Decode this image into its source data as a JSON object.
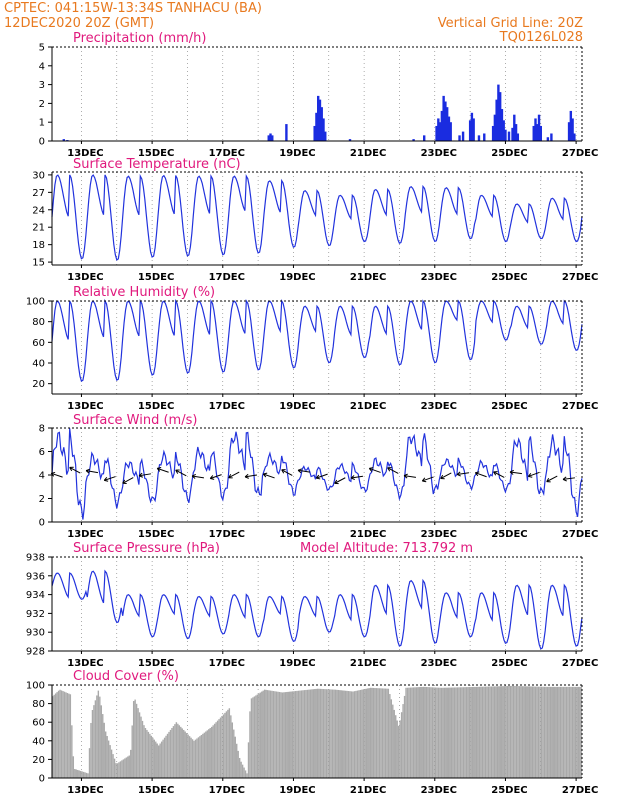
{
  "header": {
    "line1": "CPTEC:   041:15W-13:34S   TANHACU (BA)",
    "line2": "12DEC2020 20Z (GMT)",
    "grid_note": "Vertical Grid Line: 20Z",
    "run_code": "TQ0126L028"
  },
  "colors": {
    "line": "#2233dd",
    "bar": "#1a2ce0",
    "cloud": "#a9a9a9",
    "header": "#e8791f",
    "title": "#e0197d"
  },
  "x_ticks": [
    "13DEC",
    "15DEC",
    "17DEC",
    "19DEC",
    "21DEC",
    "23DEC",
    "25DEC",
    "27DEC"
  ],
  "chart_data": [
    {
      "type": "bar",
      "title": "Precipitation (mm/h)",
      "ylim": [
        0,
        5
      ],
      "yticks": [
        0,
        1,
        2,
        3,
        4,
        5
      ],
      "x_range_days": [
        12.0,
        27.0
      ],
      "bars": [
        [
          12.3,
          0.1
        ],
        [
          12.4,
          0.05
        ],
        [
          18.1,
          0.3
        ],
        [
          18.15,
          0.4
        ],
        [
          18.2,
          0.3
        ],
        [
          18.6,
          0.9
        ],
        [
          19.4,
          0.8
        ],
        [
          19.45,
          1.5
        ],
        [
          19.5,
          2.4
        ],
        [
          19.55,
          2.2
        ],
        [
          19.6,
          1.8
        ],
        [
          19.65,
          1.2
        ],
        [
          19.7,
          0.5
        ],
        [
          20.4,
          0.1
        ],
        [
          22.2,
          0.1
        ],
        [
          22.5,
          0.3
        ],
        [
          22.85,
          0.8
        ],
        [
          22.9,
          1.2
        ],
        [
          22.95,
          1.0
        ],
        [
          23.0,
          1.6
        ],
        [
          23.05,
          2.4
        ],
        [
          23.1,
          2.1
        ],
        [
          23.15,
          1.8
        ],
        [
          23.2,
          1.3
        ],
        [
          23.25,
          1.0
        ],
        [
          23.5,
          0.3
        ],
        [
          23.6,
          0.5
        ],
        [
          23.8,
          1.1
        ],
        [
          23.85,
          1.5
        ],
        [
          23.9,
          1.2
        ],
        [
          24.05,
          0.3
        ],
        [
          24.2,
          0.4
        ],
        [
          24.45,
          0.8
        ],
        [
          24.5,
          1.4
        ],
        [
          24.55,
          2.2
        ],
        [
          24.6,
          3.0
        ],
        [
          24.65,
          2.6
        ],
        [
          24.7,
          1.7
        ],
        [
          24.75,
          1.1
        ],
        [
          24.8,
          0.6
        ],
        [
          24.9,
          0.5
        ],
        [
          25.0,
          0.7
        ],
        [
          25.05,
          1.4
        ],
        [
          25.1,
          0.9
        ],
        [
          25.15,
          0.4
        ],
        [
          25.6,
          0.8
        ],
        [
          25.65,
          1.2
        ],
        [
          25.7,
          0.9
        ],
        [
          25.75,
          1.4
        ],
        [
          25.8,
          0.8
        ],
        [
          26.0,
          0.2
        ],
        [
          26.1,
          0.4
        ],
        [
          26.6,
          1.0
        ],
        [
          26.65,
          1.6
        ],
        [
          26.7,
          1.2
        ],
        [
          26.75,
          0.4
        ]
      ]
    },
    {
      "type": "line",
      "title": "Surface Temperature (nC)",
      "ylim": [
        14.5,
        30.5
      ],
      "yticks": [
        15,
        18,
        21,
        24,
        27,
        30
      ],
      "x_range_days": [
        12.0,
        27.0
      ],
      "daily_min": [
        15.5,
        15.3,
        15.8,
        16.0,
        16.2,
        16.5,
        17.5,
        17.8,
        18.5,
        18.2,
        18.5,
        19.0,
        18.5,
        19.0,
        18.5,
        18.5
      ],
      "daily_max": [
        30.0,
        30.0,
        29.8,
        29.9,
        29.8,
        29.8,
        29.0,
        27.3,
        26.5,
        27.5,
        28.0,
        27.8,
        26.5,
        25.0,
        26.0,
        27.3
      ]
    },
    {
      "type": "line",
      "title": "Relative Humidity (%)",
      "ylim": [
        10,
        100
      ],
      "yticks": [
        20,
        40,
        60,
        80,
        100
      ],
      "x_range_days": [
        12.0,
        27.0
      ],
      "daily_min": [
        22,
        23,
        28,
        30,
        31,
        33,
        35,
        40,
        45,
        38,
        40,
        43,
        62,
        58,
        52,
        55
      ],
      "daily_max": [
        100,
        100,
        100,
        100,
        100,
        100,
        100,
        95,
        95,
        95,
        100,
        100,
        100,
        95,
        100,
        100
      ]
    },
    {
      "type": "line",
      "title": "Surface Wind (m/s)",
      "ylim": [
        0,
        8
      ],
      "yticks": [
        0,
        2,
        4,
        6,
        8
      ],
      "x_range_days": [
        12.0,
        27.0
      ],
      "daily_min": [
        0.8,
        1.6,
        1.8,
        2.0,
        2.2,
        2.3,
        2.5,
        2.8,
        2.7,
        2.3,
        2.6,
        3.0,
        2.8,
        2.4,
        1.0,
        2.2
      ],
      "daily_max": [
        7.2,
        5.5,
        5.0,
        5.6,
        6.0,
        7.3,
        5.5,
        4.6,
        4.8,
        5.2,
        7.2,
        5.2,
        5.0,
        6.9,
        6.8,
        5.2
      ]
    },
    {
      "type": "line",
      "title": "Surface Pressure (hPa)",
      "annotation": "Model Altitude: 713.792 m",
      "ylim": [
        928,
        938
      ],
      "yticks": [
        928,
        930,
        932,
        934,
        936,
        938
      ],
      "x_range_days": [
        12.0,
        27.0
      ],
      "daily_min": [
        933.5,
        931.0,
        929.5,
        929.3,
        929.8,
        929.5,
        929.0,
        930.0,
        929.5,
        928.5,
        928.8,
        929.5,
        928.8,
        928.2,
        928.5,
        928.3
      ],
      "daily_max": [
        936.3,
        936.5,
        934.0,
        934.0,
        933.8,
        934.0,
        933.8,
        933.8,
        934.0,
        935.0,
        935.5,
        934.2,
        934.2,
        935.0,
        935.0,
        934.8
      ]
    },
    {
      "type": "area",
      "title": "Cloud Cover (%)",
      "ylim": [
        0,
        100
      ],
      "yticks": [
        0,
        20,
        40,
        60,
        80,
        100
      ],
      "x_range_days": [
        12.0,
        27.0
      ],
      "profile": [
        [
          12.0,
          88
        ],
        [
          12.2,
          95
        ],
        [
          12.5,
          90
        ],
        [
          12.6,
          10
        ],
        [
          13.0,
          5
        ],
        [
          13.1,
          70
        ],
        [
          13.3,
          95
        ],
        [
          13.5,
          50
        ],
        [
          13.8,
          15
        ],
        [
          14.2,
          25
        ],
        [
          14.3,
          88
        ],
        [
          14.6,
          55
        ],
        [
          15.0,
          35
        ],
        [
          15.5,
          60
        ],
        [
          16.0,
          40
        ],
        [
          16.5,
          55
        ],
        [
          17.0,
          75
        ],
        [
          17.3,
          20
        ],
        [
          17.5,
          5
        ],
        [
          17.6,
          85
        ],
        [
          18.0,
          95
        ],
        [
          18.5,
          92
        ],
        [
          19.0,
          94
        ],
        [
          19.5,
          96
        ],
        [
          20.0,
          95
        ],
        [
          20.5,
          93
        ],
        [
          21.0,
          97
        ],
        [
          21.5,
          96
        ],
        [
          21.8,
          55
        ],
        [
          22.0,
          97
        ],
        [
          22.5,
          98
        ],
        [
          23.0,
          97
        ],
        [
          24.0,
          98
        ],
        [
          25.0,
          99
        ],
        [
          26.0,
          98
        ],
        [
          27.0,
          98
        ]
      ]
    }
  ]
}
